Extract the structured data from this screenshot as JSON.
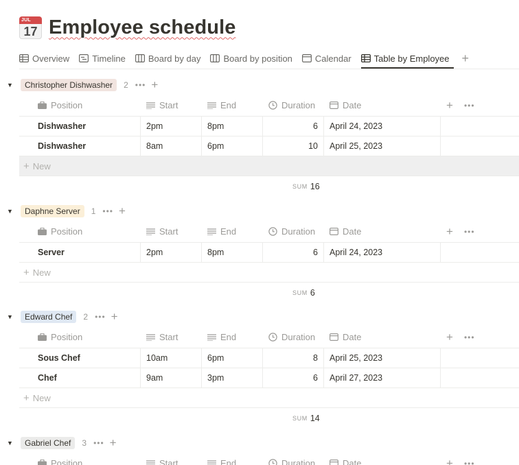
{
  "page": {
    "icon": {
      "month": "JUL",
      "day": "17"
    },
    "title": "Employee schedule"
  },
  "tabs": [
    {
      "label": "Overview",
      "icon": "table-icon",
      "active": false
    },
    {
      "label": "Timeline",
      "icon": "timeline-icon",
      "active": false
    },
    {
      "label": "Board by day",
      "icon": "board-icon",
      "active": false
    },
    {
      "label": "Board by position",
      "icon": "board-icon",
      "active": false
    },
    {
      "label": "Calendar",
      "icon": "calendar-icon",
      "active": false
    },
    {
      "label": "Table by Employee",
      "icon": "table-icon",
      "active": true
    }
  ],
  "columns": {
    "position": "Position",
    "start": "Start",
    "end": "End",
    "duration": "Duration",
    "date": "Date"
  },
  "new_label": "New",
  "sum_label": "SUM",
  "groups": [
    {
      "name": "Christopher Dishwasher",
      "tag_color": "#f1e4df",
      "count": "2",
      "rows": [
        {
          "position": "Dishwasher",
          "start": "2pm",
          "end": "8pm",
          "duration": "6",
          "date": "April 24, 2023"
        },
        {
          "position": "Dishwasher",
          "start": "8am",
          "end": "6pm",
          "duration": "10",
          "date": "April 25, 2023"
        }
      ],
      "sum": "16"
    },
    {
      "name": "Daphne Server",
      "tag_color": "#fbefd8",
      "count": "1",
      "rows": [
        {
          "position": "Server",
          "start": "2pm",
          "end": "8pm",
          "duration": "6",
          "date": "April 24, 2023"
        }
      ],
      "sum": "6"
    },
    {
      "name": "Edward Chef",
      "tag_color": "#dfe8f3",
      "count": "2",
      "rows": [
        {
          "position": "Sous Chef",
          "start": "10am",
          "end": "6pm",
          "duration": "8",
          "date": "April 25, 2023"
        },
        {
          "position": "Chef",
          "start": "9am",
          "end": "3pm",
          "duration": "6",
          "date": "April 27, 2023"
        }
      ],
      "sum": "14"
    },
    {
      "name": "Gabriel Chef",
      "tag_color": "#ebebea",
      "count": "3",
      "rows": []
    }
  ]
}
